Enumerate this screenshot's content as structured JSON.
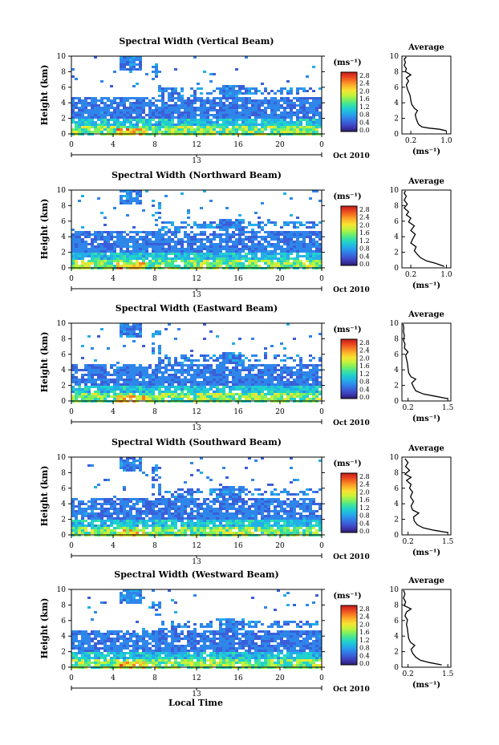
{
  "figure": {
    "xlabel": "Local Time",
    "ylabel": "Height (km)",
    "date_label": "Oct 2010",
    "cb_unit": "(ms⁻¹)",
    "avg_title": "Average",
    "avg_unit": "(ms⁻¹)",
    "colorbar_ticks": [
      "2.8",
      "2.4",
      "2.0",
      "1.6",
      "1.2",
      "0.8",
      "0.4",
      "0.0"
    ],
    "colormap": [
      "#2b1d6b",
      "#3d3bb8",
      "#3a5fd9",
      "#2f86ea",
      "#23aee8",
      "#1fd0cf",
      "#3fe39a",
      "#7ff05e",
      "#c6f23a",
      "#f6e431",
      "#fdb52b",
      "#f77b22",
      "#e8431f",
      "#c41a1a"
    ]
  },
  "chart_data": [
    {
      "type": "heatmap",
      "title": "Spectral Width (Vertical Beam)",
      "x_ticks": [
        "0",
        "4",
        "8",
        "12",
        "16",
        "20",
        "0"
      ],
      "x_date_tick": "13",
      "y_ticks": [
        "0",
        "2",
        "4",
        "6",
        "8",
        "10"
      ],
      "xlim": [
        0,
        24
      ],
      "ylim": [
        0,
        10
      ],
      "clim": [
        0.0,
        3.0
      ],
      "avg": {
        "ticks": [
          "0.2",
          "1.0"
        ],
        "xlim": [
          0.0,
          1.1
        ],
        "profile": [
          [
            1.0,
            0.4
          ],
          [
            0.85,
            0.6
          ],
          [
            0.6,
            0.75
          ],
          [
            0.45,
            0.9
          ],
          [
            0.38,
            1.2
          ],
          [
            0.35,
            1.5
          ],
          [
            0.32,
            2.0
          ],
          [
            0.3,
            2.5
          ],
          [
            0.35,
            3.0
          ],
          [
            0.28,
            3.3
          ],
          [
            0.22,
            3.8
          ],
          [
            0.2,
            4.3
          ],
          [
            0.18,
            5.0
          ],
          [
            0.12,
            5.8
          ],
          [
            0.1,
            6.3
          ],
          [
            0.15,
            6.8
          ],
          [
            0.1,
            7.2
          ],
          [
            0.2,
            7.6
          ],
          [
            0.08,
            8.0
          ],
          [
            0.1,
            8.4
          ],
          [
            0.05,
            8.8
          ],
          [
            0.08,
            9.2
          ],
          [
            0.05,
            9.6
          ],
          [
            0.1,
            9.9
          ]
        ]
      }
    },
    {
      "type": "heatmap",
      "title": "Spectral Width (Northward Beam)",
      "x_ticks": [
        "0",
        "4",
        "8",
        "12",
        "16",
        "20",
        "0"
      ],
      "x_date_tick": "13",
      "y_ticks": [
        "0",
        "2",
        "4",
        "6",
        "8",
        "10"
      ],
      "xlim": [
        0,
        24
      ],
      "ylim": [
        0,
        10
      ],
      "clim": [
        0.0,
        3.0
      ],
      "avg": {
        "ticks": [
          "0.2",
          "1.0"
        ],
        "xlim": [
          0.0,
          1.1
        ],
        "profile": [
          [
            0.95,
            0.2
          ],
          [
            0.75,
            0.6
          ],
          [
            0.55,
            0.9
          ],
          [
            0.42,
            1.3
          ],
          [
            0.35,
            1.7
          ],
          [
            0.28,
            2.2
          ],
          [
            0.32,
            2.7
          ],
          [
            0.2,
            3.2
          ],
          [
            0.25,
            3.8
          ],
          [
            0.3,
            4.3
          ],
          [
            0.2,
            4.8
          ],
          [
            0.28,
            5.4
          ],
          [
            0.15,
            5.9
          ],
          [
            0.2,
            6.4
          ],
          [
            0.1,
            6.8
          ],
          [
            0.15,
            7.2
          ],
          [
            0.05,
            7.7
          ],
          [
            0.12,
            8.2
          ],
          [
            0.05,
            8.7
          ],
          [
            0.1,
            9.2
          ],
          [
            0.05,
            9.6
          ],
          [
            0.08,
            9.9
          ]
        ]
      }
    },
    {
      "type": "heatmap",
      "title": "Spectral Width (Eastward Beam)",
      "x_ticks": [
        "0",
        "4",
        "8",
        "12",
        "16",
        "20",
        "0"
      ],
      "x_date_tick": "13",
      "y_ticks": [
        "0",
        "2",
        "4",
        "6",
        "8",
        "10"
      ],
      "xlim": [
        0,
        24
      ],
      "ylim": [
        0,
        10
      ],
      "clim": [
        0.0,
        3.0
      ],
      "avg": {
        "ticks": [
          "0.2",
          "1.5"
        ],
        "xlim": [
          0.0,
          1.6
        ],
        "profile": [
          [
            1.5,
            0.3
          ],
          [
            1.1,
            0.6
          ],
          [
            0.7,
            0.9
          ],
          [
            0.45,
            1.3
          ],
          [
            0.38,
            1.8
          ],
          [
            0.32,
            2.3
          ],
          [
            0.45,
            2.8
          ],
          [
            0.3,
            3.1
          ],
          [
            0.22,
            3.6
          ],
          [
            0.2,
            4.2
          ],
          [
            0.18,
            4.8
          ],
          [
            0.15,
            5.4
          ],
          [
            0.12,
            5.9
          ],
          [
            0.2,
            6.3
          ],
          [
            0.08,
            6.8
          ],
          [
            0.1,
            7.3
          ],
          [
            0.05,
            7.8
          ],
          [
            0.08,
            8.4
          ],
          [
            0.05,
            8.9
          ],
          [
            0.06,
            9.4
          ],
          [
            0.04,
            9.9
          ]
        ]
      }
    },
    {
      "type": "heatmap",
      "title": "Spectral Width (Southward Beam)",
      "x_ticks": [
        "0",
        "4",
        "8",
        "12",
        "16",
        "20",
        "0"
      ],
      "x_date_tick": "13",
      "y_ticks": [
        "0",
        "2",
        "4",
        "6",
        "8",
        "10"
      ],
      "xlim": [
        0,
        24
      ],
      "ylim": [
        0,
        10
      ],
      "clim": [
        0.0,
        3.0
      ],
      "avg": {
        "ticks": [
          "0.2",
          "1.5"
        ],
        "xlim": [
          0.0,
          1.6
        ],
        "profile": [
          [
            1.5,
            0.3
          ],
          [
            1.05,
            0.6
          ],
          [
            0.7,
            0.9
          ],
          [
            0.5,
            1.3
          ],
          [
            0.4,
            1.8
          ],
          [
            0.38,
            2.3
          ],
          [
            0.55,
            2.8
          ],
          [
            0.35,
            3.2
          ],
          [
            0.3,
            3.7
          ],
          [
            0.38,
            4.3
          ],
          [
            0.28,
            4.9
          ],
          [
            0.35,
            5.5
          ],
          [
            0.25,
            6.0
          ],
          [
            0.3,
            6.5
          ],
          [
            0.15,
            7.0
          ],
          [
            0.3,
            7.4
          ],
          [
            0.1,
            7.8
          ],
          [
            0.25,
            8.3
          ],
          [
            0.12,
            8.8
          ],
          [
            0.2,
            9.3
          ],
          [
            0.1,
            9.8
          ]
        ]
      }
    },
    {
      "type": "heatmap",
      "title": "Spectral Width (Westward Beam)",
      "x_ticks": [
        "0",
        "4",
        "8",
        "12",
        "16",
        "20",
        "0"
      ],
      "x_date_tick": "13",
      "y_ticks": [
        "0",
        "2",
        "4",
        "6",
        "8",
        "10"
      ],
      "xlim": [
        0,
        24
      ],
      "ylim": [
        0,
        10
      ],
      "clim": [
        0.0,
        3.0
      ],
      "avg": {
        "ticks": [
          "0.2",
          "1.5"
        ],
        "xlim": [
          0.0,
          1.6
        ],
        "profile": [
          [
            1.3,
            0.3
          ],
          [
            0.9,
            0.6
          ],
          [
            0.6,
            0.9
          ],
          [
            0.45,
            1.3
          ],
          [
            0.35,
            1.8
          ],
          [
            0.3,
            2.3
          ],
          [
            0.42,
            2.8
          ],
          [
            0.28,
            3.2
          ],
          [
            0.22,
            3.7
          ],
          [
            0.2,
            4.3
          ],
          [
            0.18,
            4.9
          ],
          [
            0.15,
            5.5
          ],
          [
            0.18,
            6.1
          ],
          [
            0.1,
            6.6
          ],
          [
            0.15,
            7.1
          ],
          [
            0.3,
            7.5
          ],
          [
            0.08,
            7.9
          ],
          [
            0.12,
            8.4
          ],
          [
            0.05,
            8.9
          ],
          [
            0.1,
            9.4
          ],
          [
            0.05,
            9.9
          ]
        ]
      }
    }
  ]
}
